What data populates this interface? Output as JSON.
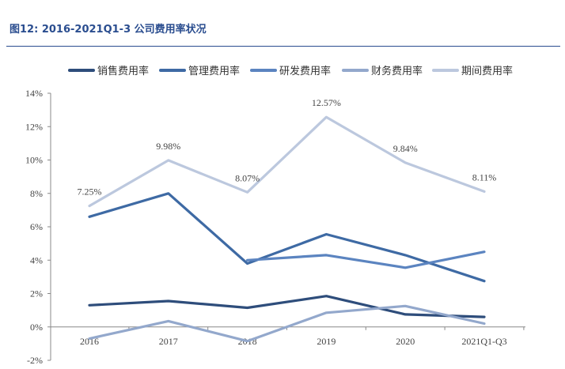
{
  "figure": {
    "title": "图12: 2016-2021Q1-3 公司费用率状况"
  },
  "chart_data": {
    "type": "line",
    "title": "",
    "xlabel": "",
    "ylabel": "",
    "categories": [
      "2016",
      "2017",
      "2018",
      "2019",
      "2020",
      "2021Q1-Q3"
    ],
    "ylim": [
      -2,
      14
    ],
    "ytick_labels": [
      "-2%",
      "0%",
      "2%",
      "4%",
      "6%",
      "8%",
      "10%",
      "12%",
      "14%"
    ],
    "legend_position": "top",
    "grid": false,
    "series": [
      {
        "name": "销售费用率",
        "color": "#2e4d7b",
        "values": [
          1.3,
          1.55,
          1.15,
          1.85,
          0.75,
          0.6
        ]
      },
      {
        "name": "管理费用率",
        "color": "#3e6aa4",
        "values": [
          6.6,
          8.0,
          3.8,
          5.55,
          4.3,
          2.75
        ]
      },
      {
        "name": "研发费用率",
        "color": "#5b84c0",
        "values": [
          null,
          null,
          4.0,
          4.3,
          3.55,
          4.5
        ]
      },
      {
        "name": "财务费用率",
        "color": "#93a8cc",
        "values": [
          -0.7,
          0.35,
          -0.85,
          0.85,
          1.25,
          0.2
        ]
      },
      {
        "name": "期间费用率",
        "color": "#bcc8de",
        "values": [
          7.25,
          9.98,
          8.07,
          12.57,
          9.84,
          8.11
        ],
        "data_labels": [
          "7.25%",
          "9.98%",
          "8.07%",
          "12.57%",
          "9.84%",
          "8.11%"
        ]
      }
    ]
  }
}
